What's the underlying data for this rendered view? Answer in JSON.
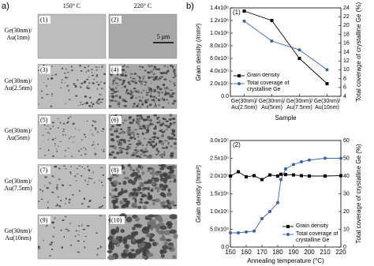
{
  "micrographs": {
    "label": "a)",
    "columns": [
      "150° C",
      "220° C"
    ],
    "scale_bar": "5 μm",
    "rows": [
      {
        "label": "Ge(30nm)/ Au(1nm)",
        "panels": [
          "(1)",
          "(2)"
        ]
      },
      {
        "label": "Ge(30nm)/ Au(2.5nm)",
        "panels": [
          "(3)",
          "(4)"
        ]
      },
      {
        "label": "Ge(30nm)/ Au(5nm)",
        "panels": [
          "(5)",
          "(6)"
        ]
      },
      {
        "label": "Ge(30nm)/ Au(7.5nm)",
        "panels": [
          "(7)",
          "(8)"
        ]
      },
      {
        "label": "Ge(30nm)/ Au(10nm)",
        "panels": [
          "(9)",
          "(10)"
        ]
      }
    ]
  },
  "chart_data": [
    {
      "type": "line",
      "label": "b)",
      "panel": "(1)",
      "xlabel": "Sample",
      "ylabel": "Grain density (/mm²)",
      "y2label": "Total coverage of crystalline Ge (%)",
      "categories": [
        [
          "Ge(30nm)/",
          "Au(2.5nm)"
        ],
        [
          "Ge(30nm)/",
          "Au(5nm)"
        ],
        [
          "Ge(30nm)/",
          "Au(7.5nm)"
        ],
        [
          "Ge(30nm)/",
          "Au(10nm)"
        ]
      ],
      "ylim": [
        0,
        1400000
      ],
      "yticks": [
        {
          "value": 0,
          "label": "0.0"
        },
        {
          "value": 200000,
          "label": "2.0x10⁵"
        },
        {
          "value": 400000,
          "label": "4.0x10⁵"
        },
        {
          "value": 600000,
          "label": "6.0x10⁵"
        },
        {
          "value": 800000,
          "label": "8.0x10⁵"
        },
        {
          "value": 1000000,
          "label": "1.0x10⁶"
        },
        {
          "value": 1200000,
          "label": "1.2x10⁶"
        },
        {
          "value": 1400000,
          "label": "1.4x10⁶"
        }
      ],
      "y2lim": [
        4,
        24
      ],
      "y2ticks": [
        4,
        6,
        8,
        10,
        12,
        14,
        16,
        18,
        20,
        22,
        24
      ],
      "legend": "lower left",
      "series": [
        {
          "name": "Grain density",
          "color": "#000000",
          "marker": "square",
          "values": [
            1350000,
            1200000,
            600000,
            200000
          ]
        },
        {
          "name": "Total coverage of crystalline Ge",
          "color": "#3a62b0",
          "marker": "circle",
          "axis": "y2",
          "values": [
            21,
            16.5,
            14.5,
            10
          ]
        }
      ]
    },
    {
      "type": "line",
      "panel": "(2)",
      "xlabel": "Annealing temperature (°C)",
      "ylabel": "Grain density (/mm²)",
      "y2label": "Total coverage of crystalline Ge (%)",
      "x": [
        150,
        155,
        160,
        165,
        170,
        175,
        180,
        182,
        185,
        190,
        195,
        200,
        210,
        220
      ],
      "xlim": [
        150,
        220
      ],
      "xticks": [
        150,
        160,
        170,
        180,
        190,
        200,
        210,
        220
      ],
      "ylim": [
        0,
        300000
      ],
      "yticks": [
        {
          "value": 0,
          "label": "0.0"
        },
        {
          "value": 50000,
          "label": "5.0x10⁴"
        },
        {
          "value": 100000,
          "label": "1.0x10⁵"
        },
        {
          "value": 150000,
          "label": "1.5x10⁵"
        },
        {
          "value": 200000,
          "label": "2.0x10⁵"
        },
        {
          "value": 250000,
          "label": "2.5x10⁵"
        },
        {
          "value": 300000,
          "label": "3.0x10⁵"
        }
      ],
      "y2lim": [
        0,
        60
      ],
      "y2ticks": [
        0,
        10,
        20,
        30,
        40,
        50,
        60
      ],
      "legend": "lower right",
      "series": [
        {
          "name": "Grain density",
          "color": "#000000",
          "marker": "square",
          "values": [
            200000,
            212000,
            198000,
            201000,
            190000,
            203000,
            200000,
            205000,
            204000,
            203000,
            201000,
            200000,
            200000,
            201000
          ]
        },
        {
          "name": "Total coverage of crystalline Ge",
          "color": "#3a62b0",
          "marker": "circle",
          "axis": "y2",
          "values": [
            8,
            8,
            8.5,
            9,
            16,
            20,
            25,
            38,
            44,
            46.5,
            48,
            49,
            50,
            50
          ]
        }
      ]
    }
  ]
}
